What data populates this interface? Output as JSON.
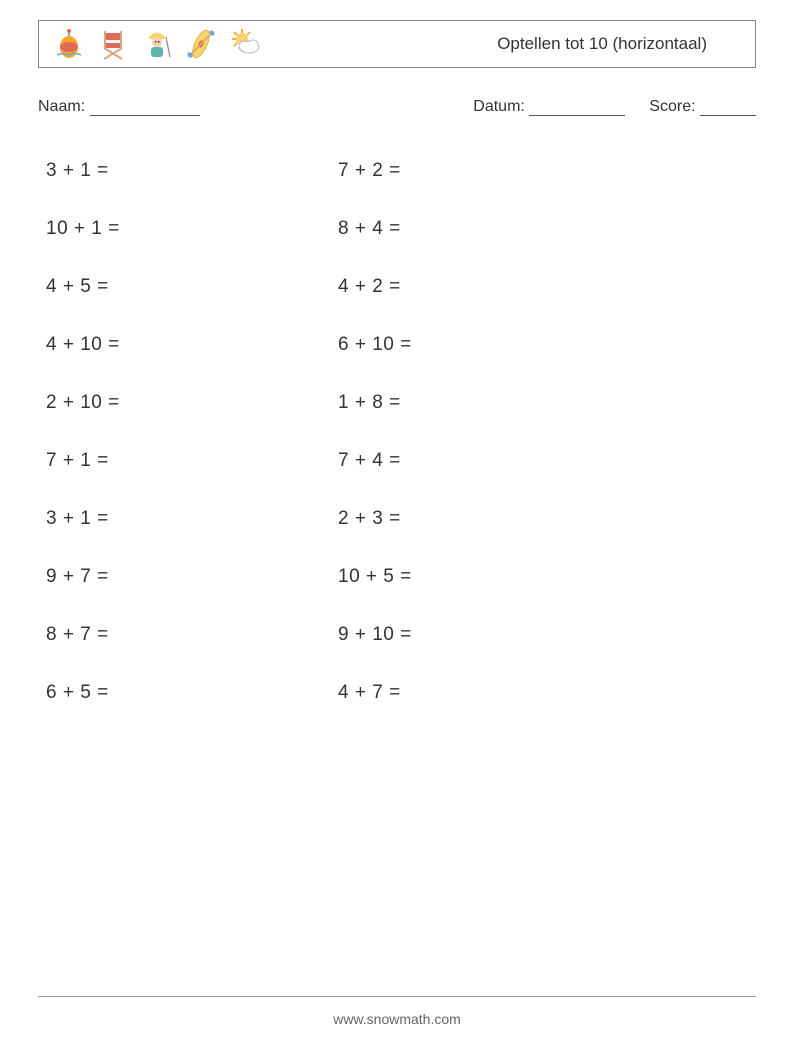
{
  "worksheet": {
    "title": "Optellen tot 10 (horizontaal)",
    "icons": [
      "fishing-buoy",
      "director-chair",
      "fisherman",
      "kayak",
      "sun-cloud"
    ],
    "name_label": "Naam:",
    "date_label": "Datum:",
    "score_label": "Score:",
    "blank_width_name": 110,
    "blank_width_date": 96,
    "blank_width_score": 56,
    "font_size_labels": 16,
    "font_size_problems": 19,
    "font_size_title": 17,
    "text_color": "#333333",
    "border_color": "#888888",
    "problems_left": [
      {
        "a": 3,
        "b": 1
      },
      {
        "a": 10,
        "b": 1
      },
      {
        "a": 4,
        "b": 5
      },
      {
        "a": 4,
        "b": 10
      },
      {
        "a": 2,
        "b": 10
      },
      {
        "a": 7,
        "b": 1
      },
      {
        "a": 3,
        "b": 1
      },
      {
        "a": 9,
        "b": 7
      },
      {
        "a": 8,
        "b": 7
      },
      {
        "a": 6,
        "b": 5
      }
    ],
    "problems_right": [
      {
        "a": 7,
        "b": 2
      },
      {
        "a": 8,
        "b": 4
      },
      {
        "a": 4,
        "b": 2
      },
      {
        "a": 6,
        "b": 10
      },
      {
        "a": 1,
        "b": 8
      },
      {
        "a": 7,
        "b": 4
      },
      {
        "a": 2,
        "b": 3
      },
      {
        "a": 10,
        "b": 5
      },
      {
        "a": 9,
        "b": 10
      },
      {
        "a": 4,
        "b": 7
      }
    ],
    "footer": "www.snowmath.com",
    "icon_colors": {
      "orange": "#f5a623",
      "red": "#e06b5a",
      "wood": "#d8a878",
      "blue": "#6fa8dc",
      "yellow": "#f8d568",
      "skin": "#f5d0b0",
      "teal": "#5bb5a8",
      "gray": "#888888"
    }
  }
}
